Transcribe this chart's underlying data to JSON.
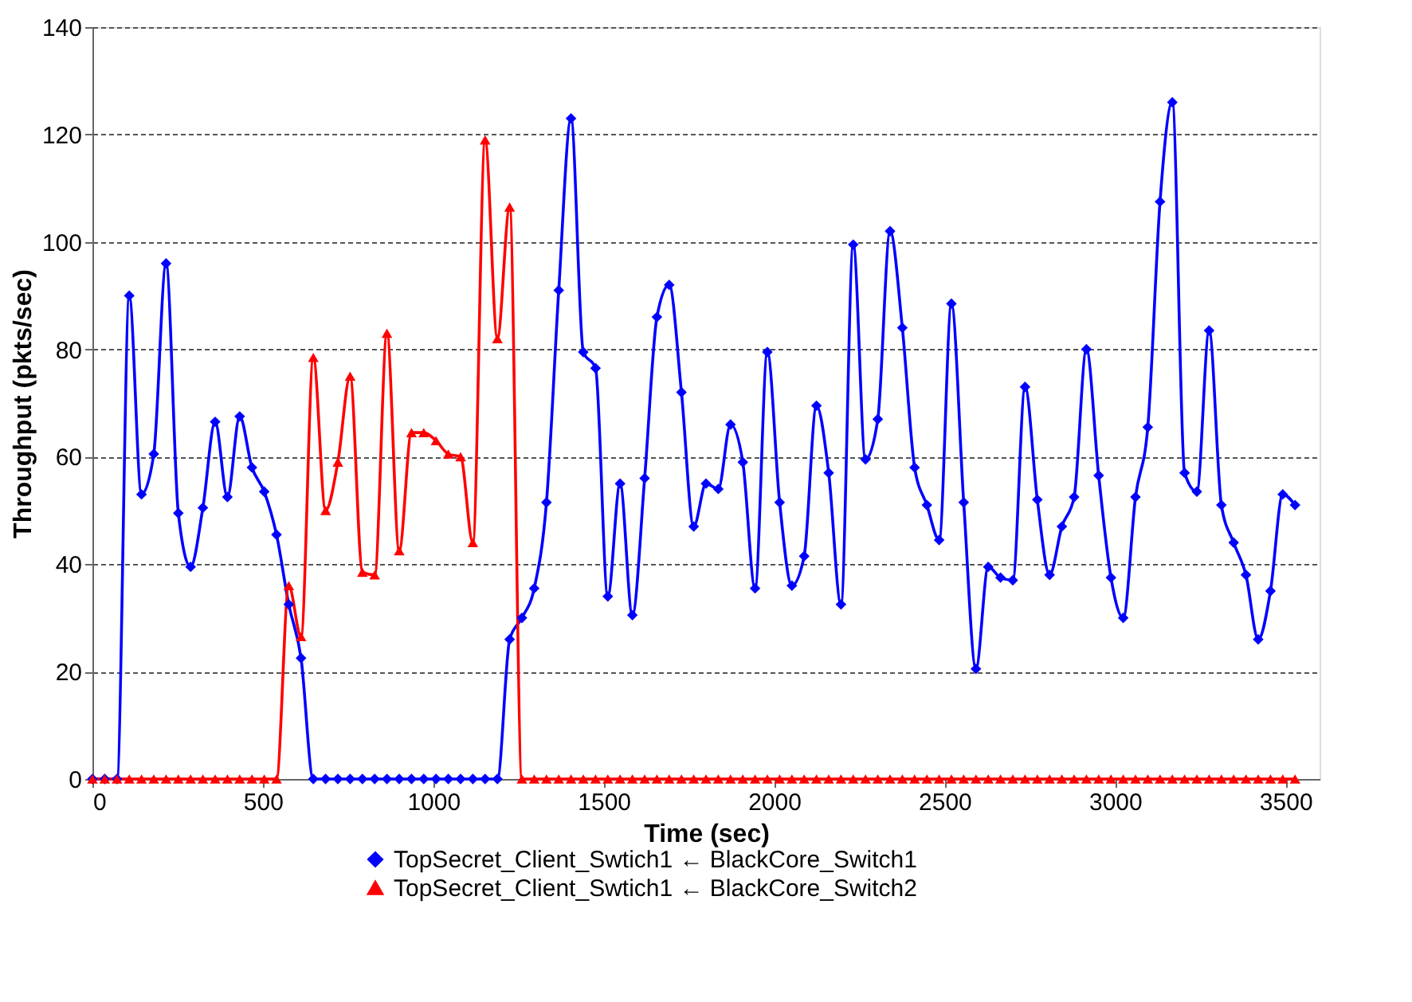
{
  "chart_data": {
    "type": "line",
    "xlabel": "Time (sec)",
    "ylabel": "Throughput (pkts/sec)",
    "x": [
      0,
      36,
      72,
      108,
      144,
      180,
      216,
      252,
      288,
      324,
      360,
      396,
      432,
      468,
      504,
      540,
      576,
      612,
      648,
      684,
      720,
      756,
      792,
      828,
      864,
      900,
      936,
      972,
      1008,
      1044,
      1080,
      1116,
      1152,
      1188,
      1224,
      1260,
      1296,
      1332,
      1368,
      1404,
      1440,
      1476,
      1512,
      1548,
      1584,
      1620,
      1656,
      1692,
      1728,
      1764,
      1800,
      1836,
      1872,
      1908,
      1944,
      1980,
      2016,
      2052,
      2088,
      2124,
      2160,
      2196,
      2232,
      2268,
      2304,
      2340,
      2376,
      2412,
      2448,
      2484,
      2520,
      2556,
      2592,
      2628,
      2664,
      2700,
      2736,
      2772,
      2808,
      2844,
      2880,
      2916,
      2952,
      2988,
      3024,
      3060,
      3096,
      3132,
      3168,
      3204,
      3240,
      3276,
      3312,
      3348,
      3384,
      3420,
      3456,
      3492,
      3528
    ],
    "series": [
      {
        "name": "TopSecret_Client_Swtich1 ← BlackCore_Switch1",
        "color": "#0000ff",
        "marker": "diamond",
        "values": [
          0,
          0,
          0,
          90,
          53,
          60.5,
          96,
          49.5,
          39.5,
          50.5,
          66.5,
          52.5,
          67.5,
          58,
          53.5,
          45.5,
          32.5,
          22.5,
          0,
          0,
          0,
          0,
          0,
          0,
          0,
          0,
          0,
          0,
          0,
          0,
          0,
          0,
          0,
          0,
          26,
          30,
          35.5,
          51.5,
          91,
          123,
          79.5,
          76.5,
          34,
          55,
          30.5,
          56,
          86,
          92,
          72,
          47,
          55,
          54,
          66,
          59,
          35.5,
          79.5,
          51.5,
          36,
          41.5,
          69.5,
          57,
          32.5,
          99.5,
          59.5,
          67,
          102,
          84,
          58,
          51,
          44.5,
          88.5,
          51.5,
          20.5,
          39.5,
          37.5,
          37,
          73,
          52,
          38,
          47,
          52.5,
          80,
          56.5,
          37.5,
          30,
          52.5,
          65.5,
          107.5,
          126,
          57,
          53.5,
          83.5,
          51,
          44,
          38,
          26,
          35,
          53,
          51
        ]
      },
      {
        "name": "TopSecret_Client_Swtich1 ← BlackCore_Switch2",
        "color": "#ff0000",
        "marker": "triangle",
        "values": [
          0,
          0,
          0,
          0,
          0,
          0,
          0,
          0,
          0,
          0,
          0,
          0,
          0,
          0,
          0,
          0,
          36,
          26.5,
          78.5,
          50,
          59,
          75,
          38.5,
          38,
          83,
          42.5,
          64.5,
          64.5,
          63,
          60.5,
          60,
          44,
          119,
          82,
          106.5,
          0,
          0,
          0,
          0,
          0,
          0,
          0,
          0,
          0,
          0,
          0,
          0,
          0,
          0,
          0,
          0,
          0,
          0,
          0,
          0,
          0,
          0,
          0,
          0,
          0,
          0,
          0,
          0,
          0,
          0,
          0,
          0,
          0,
          0,
          0,
          0,
          0,
          0,
          0,
          0,
          0,
          0,
          0,
          0,
          0,
          0,
          0,
          0,
          0,
          0,
          0,
          0,
          0,
          0,
          0,
          0,
          0,
          0,
          0,
          0,
          0,
          0,
          0,
          0
        ]
      }
    ],
    "xlim": [
      0,
      3600
    ],
    "xticks": [
      0,
      500,
      1000,
      1500,
      2000,
      2500,
      3000,
      3500
    ],
    "ylim": [
      0,
      140
    ],
    "yticks": [
      0,
      20,
      40,
      60,
      80,
      100,
      120,
      140
    ],
    "grid": "y",
    "legend": "bottom"
  }
}
